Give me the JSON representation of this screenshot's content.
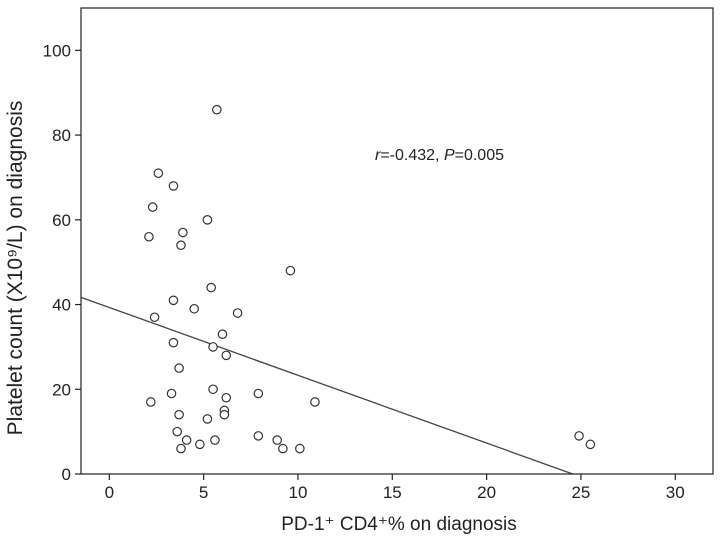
{
  "chart_data": {
    "type": "scatter",
    "xlabel": "PD-1⁺ CD4⁺% on diagnosis",
    "ylabel": "Platelet count (X10⁹/L) on diagnosis",
    "xlim": [
      -1.5,
      32
    ],
    "ylim": [
      0,
      110
    ],
    "xticks": [
      0,
      5,
      10,
      15,
      20,
      25,
      30
    ],
    "yticks": [
      0,
      20,
      40,
      60,
      80,
      100
    ],
    "xtick_labels": [
      "0",
      "5",
      "10",
      "15",
      "20",
      "25",
      "30"
    ],
    "ytick_labels": [
      "0",
      "20",
      "40",
      "60",
      "80",
      "100"
    ],
    "grid": false,
    "annotation": {
      "r_symbol": "r",
      "r_text": "=-0.432, ",
      "p_symbol": "P",
      "p_text": "=0.005"
    },
    "fit_line": {
      "intercept": 39.3,
      "slope": -1.6,
      "x_start": -1.5
    },
    "points": [
      {
        "x": 5.7,
        "y": 86
      },
      {
        "x": 2.6,
        "y": 71
      },
      {
        "x": 3.4,
        "y": 68
      },
      {
        "x": 2.3,
        "y": 63
      },
      {
        "x": 5.2,
        "y": 60
      },
      {
        "x": 3.9,
        "y": 57
      },
      {
        "x": 2.1,
        "y": 56
      },
      {
        "x": 3.8,
        "y": 54
      },
      {
        "x": 9.6,
        "y": 48
      },
      {
        "x": 5.4,
        "y": 44
      },
      {
        "x": 3.4,
        "y": 41
      },
      {
        "x": 4.5,
        "y": 39
      },
      {
        "x": 6.8,
        "y": 38
      },
      {
        "x": 2.4,
        "y": 37
      },
      {
        "x": 6.0,
        "y": 33
      },
      {
        "x": 3.4,
        "y": 31
      },
      {
        "x": 5.5,
        "y": 30
      },
      {
        "x": 6.2,
        "y": 28
      },
      {
        "x": 3.7,
        "y": 25
      },
      {
        "x": 5.5,
        "y": 20
      },
      {
        "x": 3.3,
        "y": 19
      },
      {
        "x": 7.9,
        "y": 19
      },
      {
        "x": 6.2,
        "y": 18
      },
      {
        "x": 2.2,
        "y": 17
      },
      {
        "x": 10.9,
        "y": 17
      },
      {
        "x": 6.1,
        "y": 15
      },
      {
        "x": 3.7,
        "y": 14
      },
      {
        "x": 6.1,
        "y": 14
      },
      {
        "x": 5.2,
        "y": 13
      },
      {
        "x": 3.6,
        "y": 10
      },
      {
        "x": 7.9,
        "y": 9
      },
      {
        "x": 24.9,
        "y": 9
      },
      {
        "x": 4.1,
        "y": 8
      },
      {
        "x": 5.6,
        "y": 8
      },
      {
        "x": 8.9,
        "y": 8
      },
      {
        "x": 4.8,
        "y": 7
      },
      {
        "x": 25.5,
        "y": 7
      },
      {
        "x": 3.8,
        "y": 6
      },
      {
        "x": 9.2,
        "y": 6
      },
      {
        "x": 10.1,
        "y": 6
      }
    ]
  }
}
